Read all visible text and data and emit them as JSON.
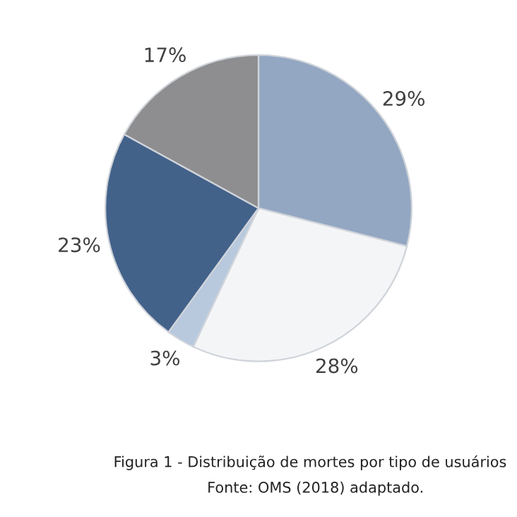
{
  "chart_data": {
    "type": "pie",
    "categories": [
      null,
      null,
      null,
      null,
      null
    ],
    "values": [
      29,
      28,
      3,
      23,
      17
    ],
    "value_labels": [
      "29%",
      "28%",
      "3%",
      "23%",
      "17%"
    ],
    "colors": [
      "#93a7c2",
      "#f4f5f7",
      "#b8c9de",
      "#43628a",
      "#8e8e90"
    ],
    "annotations": [
      "Figura 1 - Distribuição de mortes por tipo de usuários",
      "Fonte: OMS (2018) adaptado."
    ]
  }
}
